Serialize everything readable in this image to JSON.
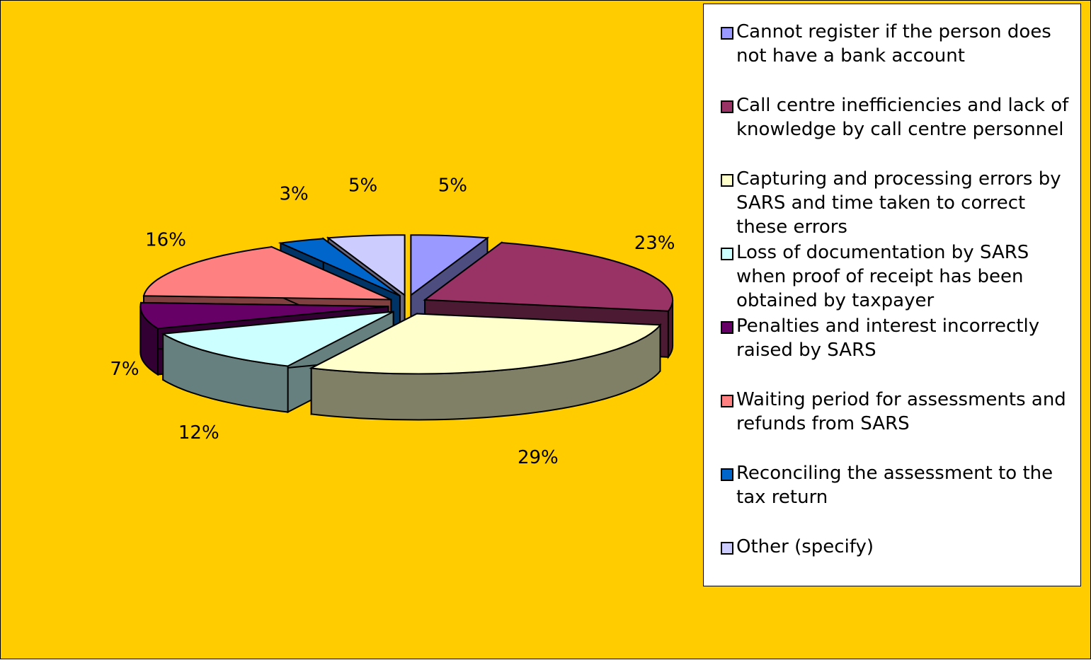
{
  "chart_data": {
    "type": "pie",
    "categories": [
      "Cannot register if the person does not have a bank account",
      "Call centre inefficiencies and lack of knowledge by call centre personnel",
      "Capturing and processing errors by SARS and time taken to correct these errors",
      "Loss of documentation by SARS when proof of receipt has been obtained by taxpayer",
      "Penalties and interest incorrectly raised by SARS",
      "Waiting period for assessments and refunds from SARS",
      "Reconciling the assessment to the tax return",
      "Other (specify)"
    ],
    "values": [
      5,
      23,
      29,
      12,
      7,
      16,
      3,
      5
    ],
    "value_labels": [
      "5%",
      "23%",
      "29%",
      "12%",
      "7%",
      "16%",
      "3%",
      "5%"
    ],
    "colors": [
      "#9999ff",
      "#993366",
      "#ffffcc",
      "#ccffff",
      "#660066",
      "#ff8080",
      "#0066cc",
      "#ccccff"
    ],
    "legend": "right"
  }
}
